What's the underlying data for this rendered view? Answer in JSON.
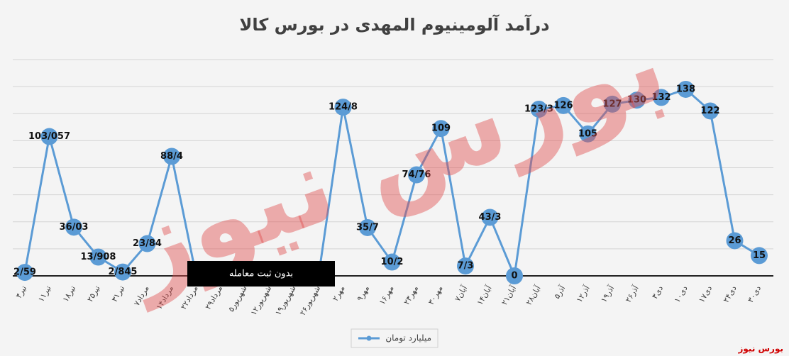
{
  "chart_data": {
    "type": "line",
    "title": "درآمد آلومینیوم المهدی در بورس کالا",
    "annotation": "بدون ثبت معامله",
    "watermark": "بورس نیوز",
    "categories": [
      "۴تیر",
      "۱۱تیر",
      "۱۸تیر",
      "۲۵تیر",
      "۳۱تیر",
      "۷مرداد",
      "۱۴مرداد",
      "۲۲مرداد",
      "۲۹مرداد",
      "۵شهریور",
      "۱۲شهریور",
      "۱۹شهریور",
      "۲۶شهریور",
      "۲مهر",
      "۹مهر",
      "۱۶مهر",
      "۲۳مهر",
      "۳۰مهر",
      "۷آبان",
      "۱۴آبان",
      "۲۱آبان",
      "۲۸آبان",
      "۵آذر",
      "۱۲آذر",
      "۱۹آذر",
      "۲۶آذر",
      "۳دی",
      "۱۰دی",
      "۱۷دی",
      "۲۴دی",
      "۳۰دی"
    ],
    "series": [
      {
        "name": "میلیارد تومان",
        "color": "#5b9bd5",
        "values": [
          2.59,
          103.057,
          36.03,
          13.908,
          2.845,
          23.84,
          88.4,
          0,
          0,
          0,
          0,
          0,
          0,
          124.8,
          35.7,
          10.2,
          74.76,
          109,
          7.3,
          43.3,
          0,
          123.3,
          126,
          105,
          127,
          130,
          132,
          138,
          122,
          26,
          15
        ],
        "value_labels": [
          "2/59",
          "103/057",
          "36/03",
          "13/908",
          "2/845",
          "23/84",
          "88/4",
          null,
          null,
          null,
          null,
          null,
          null,
          "124/8",
          "35/7",
          "10/2",
          "74/76",
          "109",
          "7/3",
          "43/3",
          "0",
          "123/3",
          "126",
          "105",
          "127",
          "130",
          "132",
          "138",
          "122",
          "26",
          "15"
        ]
      }
    ],
    "ylim": [
      0,
      160
    ],
    "yticks": [
      0,
      20,
      40,
      60,
      80,
      100,
      120,
      140,
      160
    ],
    "grid": true
  }
}
